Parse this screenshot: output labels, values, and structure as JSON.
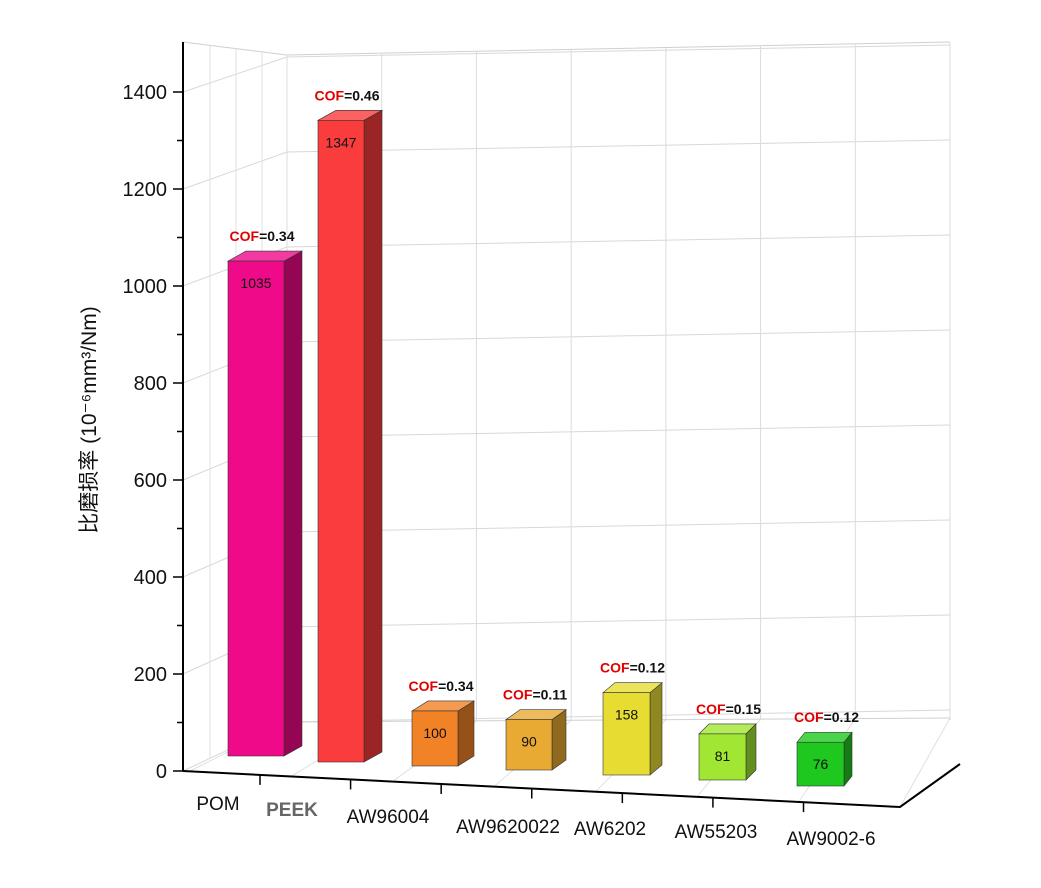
{
  "chart_data": {
    "type": "bar",
    "title": "",
    "xlabel": "",
    "ylabel": "比磨损率 (10⁻⁶mm³/Nm)",
    "ylim": [
      0,
      1400
    ],
    "yticks": [
      "0",
      "200",
      "400",
      "600",
      "800",
      "1000",
      "1200",
      "1400"
    ],
    "grid": true,
    "categories": [
      "POM",
      "PEEK",
      "AW96004",
      "AW9620022",
      "AW6202",
      "AW55203",
      "AW9002-6"
    ],
    "values": [
      1035,
      1347,
      100,
      90,
      158,
      81,
      76
    ],
    "value_labels": [
      "1035",
      "1347",
      "100",
      "90",
      "158",
      "81",
      "76"
    ],
    "cof_key": "COF",
    "cof_labels": [
      "=0.34",
      "=0.46",
      "=0.34",
      "=0.11",
      "=0.12",
      "=0.15",
      "=0.12"
    ],
    "colors": [
      "#ee0a88",
      "#fa3c3c",
      "#f28226",
      "#e8aa32",
      "#e6dc32",
      "#a0e632",
      "#1ec81e"
    ]
  }
}
